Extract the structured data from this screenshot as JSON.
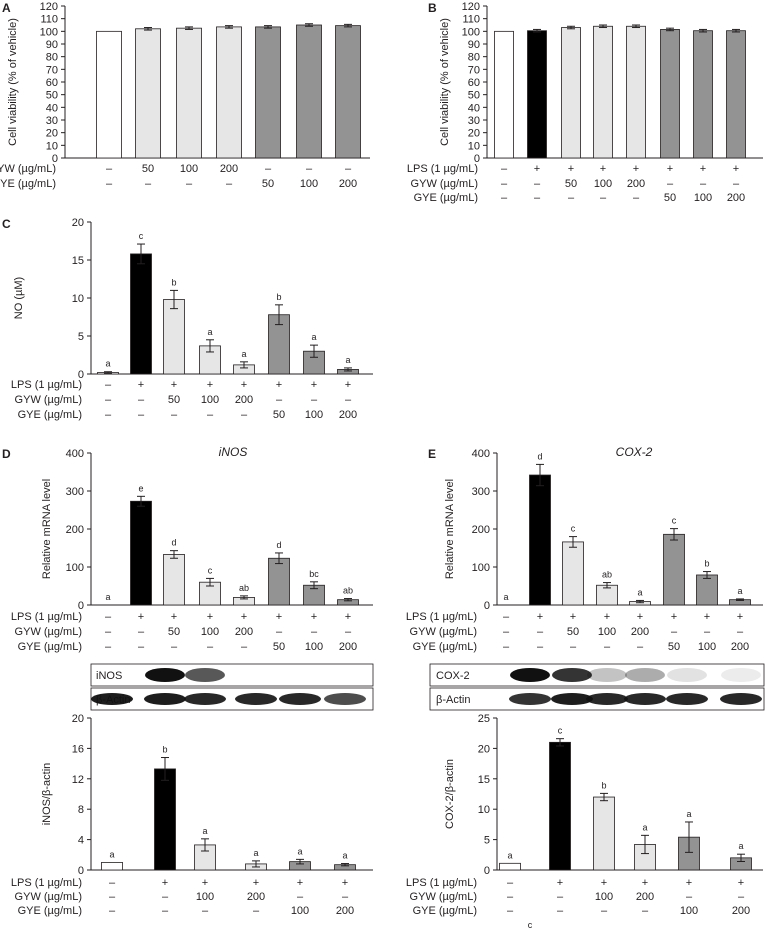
{
  "fills": {
    "white": "#ffffff",
    "black": "#000000",
    "light": "#e6e6e6",
    "dark": "#939393",
    "ink": "#231f20"
  },
  "row_labels": {
    "lps": "LPS (1 µg/mL)",
    "gyw": "GYW (µg/mL)",
    "gye": "GYE (µg/mL)"
  },
  "footer_mark": "c",
  "chart_data": [
    {
      "panel": "A",
      "type": "bar",
      "ylabel": "Cell viability (% of vehicle)",
      "ylim": [
        0,
        120
      ],
      "yticks": [
        "0",
        "10",
        "20",
        "30",
        "40",
        "50",
        "60",
        "70",
        "80",
        "90",
        "100",
        "110",
        "120"
      ],
      "values": [
        100,
        102,
        102.5,
        103.5,
        103.5,
        105,
        104.5
      ],
      "errors": [
        0,
        1,
        1,
        1,
        1,
        1,
        1
      ],
      "fills": [
        "white",
        "light",
        "light",
        "light",
        "dark",
        "dark",
        "dark"
      ],
      "letters": null,
      "rows": [
        {
          "label": "GYW (µg/mL)",
          "cells": [
            "–",
            "50",
            "100",
            "200",
            "–",
            "–",
            "–"
          ]
        },
        {
          "label": "GYE (µg/mL)",
          "cells": [
            "–",
            "–",
            "–",
            "–",
            "50",
            "100",
            "200"
          ]
        }
      ]
    },
    {
      "panel": "B",
      "type": "bar",
      "ylabel": "Cell viability (% of vehicle)",
      "ylim": [
        0,
        120
      ],
      "yticks": [
        "0",
        "10",
        "20",
        "30",
        "40",
        "50",
        "60",
        "70",
        "80",
        "90",
        "100",
        "110",
        "120"
      ],
      "values": [
        100,
        100.5,
        103,
        104,
        104,
        101.5,
        100.5,
        100.5
      ],
      "errors": [
        0,
        1,
        1,
        1,
        1,
        1,
        1,
        1
      ],
      "fills": [
        "white",
        "black",
        "light",
        "light",
        "light",
        "dark",
        "dark",
        "dark"
      ],
      "letters": null,
      "rows": [
        {
          "label": "LPS (1 µg/mL)",
          "cells": [
            "–",
            "+",
            "+",
            "+",
            "+",
            "+",
            "+",
            "+"
          ]
        },
        {
          "label": "GYW (µg/mL)",
          "cells": [
            "–",
            "–",
            "50",
            "100",
            "200",
            "–",
            "–",
            "–"
          ]
        },
        {
          "label": "GYE (µg/mL)",
          "cells": [
            "–",
            "–",
            "–",
            "–",
            "–",
            "50",
            "100",
            "200"
          ]
        }
      ]
    },
    {
      "panel": "C",
      "type": "bar",
      "ylabel": "NO (µM)",
      "ylim": [
        0,
        20
      ],
      "yticks": [
        "0",
        "5",
        "10",
        "15",
        "20"
      ],
      "values": [
        0.2,
        15.8,
        9.8,
        3.7,
        1.2,
        7.8,
        3.0,
        0.6
      ],
      "errors": [
        0.1,
        1.3,
        1.2,
        0.8,
        0.4,
        1.3,
        0.8,
        0.2
      ],
      "fills": [
        "white",
        "black",
        "light",
        "light",
        "light",
        "dark",
        "dark",
        "dark"
      ],
      "letters": [
        "a",
        "c",
        "b",
        "a",
        "a",
        "b",
        "a",
        "a"
      ],
      "rows": [
        {
          "label": "LPS (1 µg/mL)",
          "cells": [
            "–",
            "+",
            "+",
            "+",
            "+",
            "+",
            "+",
            "+"
          ]
        },
        {
          "label": "GYW (µg/mL)",
          "cells": [
            "–",
            "–",
            "50",
            "100",
            "200",
            "–",
            "–",
            "–"
          ]
        },
        {
          "label": "GYE (µg/mL)",
          "cells": [
            "–",
            "–",
            "–",
            "–",
            "–",
            "50",
            "100",
            "200"
          ]
        }
      ]
    },
    {
      "panel": "D",
      "type": "bar",
      "title": "iNOS",
      "ylabel": "Relative mRNA level",
      "ylim": [
        0,
        400
      ],
      "yticks": [
        "0",
        "100",
        "200",
        "300",
        "400"
      ],
      "values": [
        0,
        273,
        133,
        60,
        20,
        123,
        52,
        14
      ],
      "errors": [
        0,
        13,
        10,
        10,
        4,
        14,
        9,
        3
      ],
      "fills": [
        "white",
        "black",
        "light",
        "light",
        "light",
        "dark",
        "dark",
        "dark"
      ],
      "letters": [
        "a",
        "e",
        "d",
        "c",
        "ab",
        "d",
        "bc",
        "ab"
      ],
      "rows": [
        {
          "label": "LPS (1 µg/mL)",
          "cells": [
            "–",
            "+",
            "+",
            "+",
            "+",
            "+",
            "+",
            "+"
          ]
        },
        {
          "label": "GYW (µg/mL)",
          "cells": [
            "–",
            "–",
            "50",
            "100",
            "200",
            "–",
            "–",
            "–"
          ]
        },
        {
          "label": "GYE (µg/mL)",
          "cells": [
            "–",
            "–",
            "–",
            "–",
            "–",
            "50",
            "100",
            "200"
          ]
        }
      ]
    },
    {
      "panel": "E",
      "type": "bar",
      "title": "COX-2",
      "ylabel": "Relative mRNA level",
      "ylim": [
        0,
        400
      ],
      "yticks": [
        "0",
        "100",
        "200",
        "300",
        "400"
      ],
      "values": [
        0,
        342,
        166,
        52,
        9,
        186,
        79,
        14
      ],
      "errors": [
        0,
        28,
        14,
        7,
        3,
        15,
        9,
        2
      ],
      "fills": [
        "white",
        "black",
        "light",
        "light",
        "light",
        "dark",
        "dark",
        "dark"
      ],
      "letters": [
        "a",
        "d",
        "c",
        "ab",
        "a",
        "c",
        "b",
        "a"
      ],
      "rows": [
        {
          "label": "LPS (1 µg/mL)",
          "cells": [
            "–",
            "+",
            "+",
            "+",
            "+",
            "+",
            "+",
            "+"
          ]
        },
        {
          "label": "GYW (µg/mL)",
          "cells": [
            "–",
            "–",
            "50",
            "100",
            "200",
            "–",
            "–",
            "–"
          ]
        },
        {
          "label": "GYE (µg/mL)",
          "cells": [
            "–",
            "–",
            "–",
            "–",
            "–",
            "50",
            "100",
            "200"
          ]
        }
      ]
    },
    {
      "panel": "D-blot",
      "type": "bar",
      "ylabel": "iNOS/β-actin",
      "ylim": [
        0,
        20
      ],
      "yticks": [
        "0",
        "4",
        "8",
        "12",
        "16",
        "20"
      ],
      "blot_labels": [
        "iNOS",
        "β-Actin"
      ],
      "values": [
        1.0,
        13.3,
        3.3,
        0.8,
        1.1,
        0.7
      ],
      "errors": [
        0,
        1.5,
        0.8,
        0.4,
        0.3,
        0.15
      ],
      "fills": [
        "white",
        "black",
        "light",
        "light",
        "dark",
        "dark"
      ],
      "letters": [
        "a",
        "b",
        "a",
        "a",
        "a",
        "a"
      ],
      "rows": [
        {
          "label": "LPS (1 µg/mL)",
          "cells": [
            "–",
            "+",
            "+",
            "+",
            "+",
            "+"
          ]
        },
        {
          "label": "GYW (µg/mL)",
          "cells": [
            "–",
            "–",
            "100",
            "200",
            "–",
            "–"
          ]
        },
        {
          "label": "GYE (µg/mL)",
          "cells": [
            "–",
            "–",
            "–",
            "–",
            "100",
            "200"
          ]
        }
      ]
    },
    {
      "panel": "E-blot",
      "type": "bar",
      "ylabel": "COX-2/β-actin",
      "ylim": [
        0,
        25
      ],
      "yticks": [
        "0",
        "5",
        "10",
        "15",
        "20",
        "25"
      ],
      "blot_labels": [
        "COX-2",
        "β-Actin"
      ],
      "values": [
        1.1,
        21.0,
        12.0,
        4.2,
        5.4,
        2.0
      ],
      "errors": [
        0,
        0.6,
        0.6,
        1.5,
        2.5,
        0.6
      ],
      "fills": [
        "white",
        "black",
        "light",
        "light",
        "dark",
        "dark"
      ],
      "letters": [
        "a",
        "c",
        "b",
        "a",
        "a",
        "a"
      ],
      "rows": [
        {
          "label": "LPS (1 µg/mL)",
          "cells": [
            "–",
            "+",
            "+",
            "+",
            "+",
            "+"
          ]
        },
        {
          "label": "GYW (µg/mL)",
          "cells": [
            "–",
            "–",
            "100",
            "200",
            "–",
            "–"
          ]
        },
        {
          "label": "GYE (µg/mL)",
          "cells": [
            "–",
            "–",
            "–",
            "–",
            "100",
            "200"
          ]
        }
      ]
    }
  ]
}
